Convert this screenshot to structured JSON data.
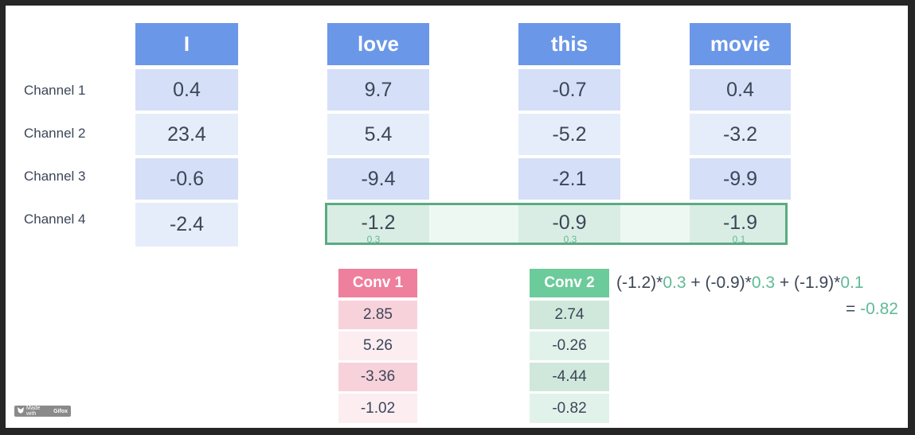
{
  "words": [
    "I",
    "love",
    "this",
    "movie"
  ],
  "channels": [
    "Channel 1",
    "Channel 2",
    "Channel 3",
    "Channel 4"
  ],
  "values": [
    [
      "0.4",
      "23.4",
      "-0.6",
      "-2.4"
    ],
    [
      "9.7",
      "5.4",
      "-9.4",
      "-1.2"
    ],
    [
      "-0.7",
      "-5.2",
      "-2.1",
      "-0.9"
    ],
    [
      "0.4",
      "-3.2",
      "-9.9",
      "-1.9"
    ]
  ],
  "kernel_weights": [
    "0.3",
    "0.3",
    "0.1"
  ],
  "conv1": {
    "label": "Conv 1",
    "values": [
      "2.85",
      "5.26",
      "-3.36",
      "-1.02"
    ],
    "header_color": "#ee7f9d"
  },
  "conv2": {
    "label": "Conv 2",
    "values": [
      "2.74",
      "-0.26",
      "-4.44",
      "-0.82"
    ],
    "header_color": "#6ccb9b"
  },
  "formula": {
    "t1": "(-1.2)*",
    "w1": "0.3",
    "t2": " + (-0.9)*",
    "w2": "0.3",
    "t3": " + (-1.9)*",
    "w3": "0.1",
    "eq": "= ",
    "result": "-0.82"
  },
  "watermark": {
    "text": "Made with",
    "brand": "Gifox"
  },
  "colors": {
    "header": "#6b97e8",
    "cell_dark": "#d5dff7",
    "cell_light": "#e6edfa",
    "highlight": "#5aab82",
    "accent_green": "#5fba97"
  }
}
